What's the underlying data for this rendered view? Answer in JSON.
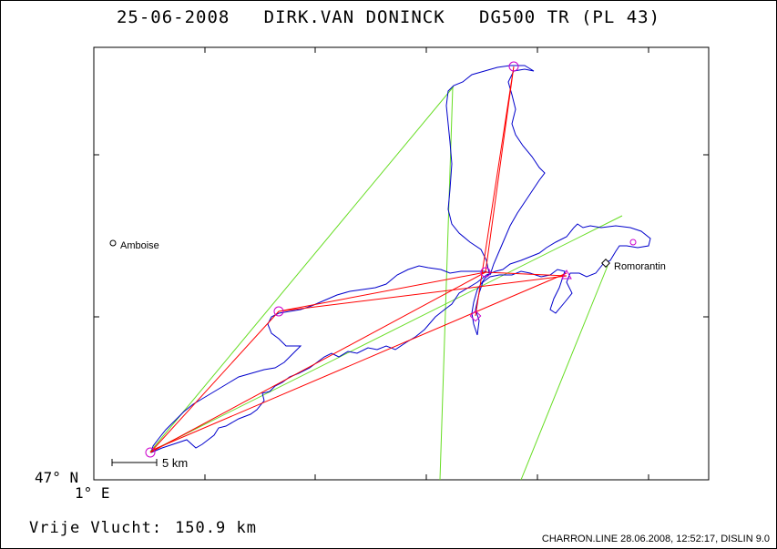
{
  "header": {
    "date": "25-06-2008",
    "pilot": "DIRK.VAN DONINCK",
    "glider": "DG500 TR (PL 43)"
  },
  "axes": {
    "lat_label": "47° N",
    "lon_label": "1° E"
  },
  "scale": {
    "label": "5 km"
  },
  "towns": [
    {
      "name": "Amboise"
    },
    {
      "name": "Romorantin"
    }
  ],
  "summary": {
    "label": "Vrije Vlucht:",
    "distance": "150.9 km"
  },
  "footer": {
    "credit": "CHARRON.LINE 28.06.2008, 12:52:17, DISLIN 9.0"
  },
  "colors": {
    "track": "#0000cc",
    "task": "#ff0000",
    "sector": "#66dd22",
    "turnpoint": "#cc00cc"
  }
}
